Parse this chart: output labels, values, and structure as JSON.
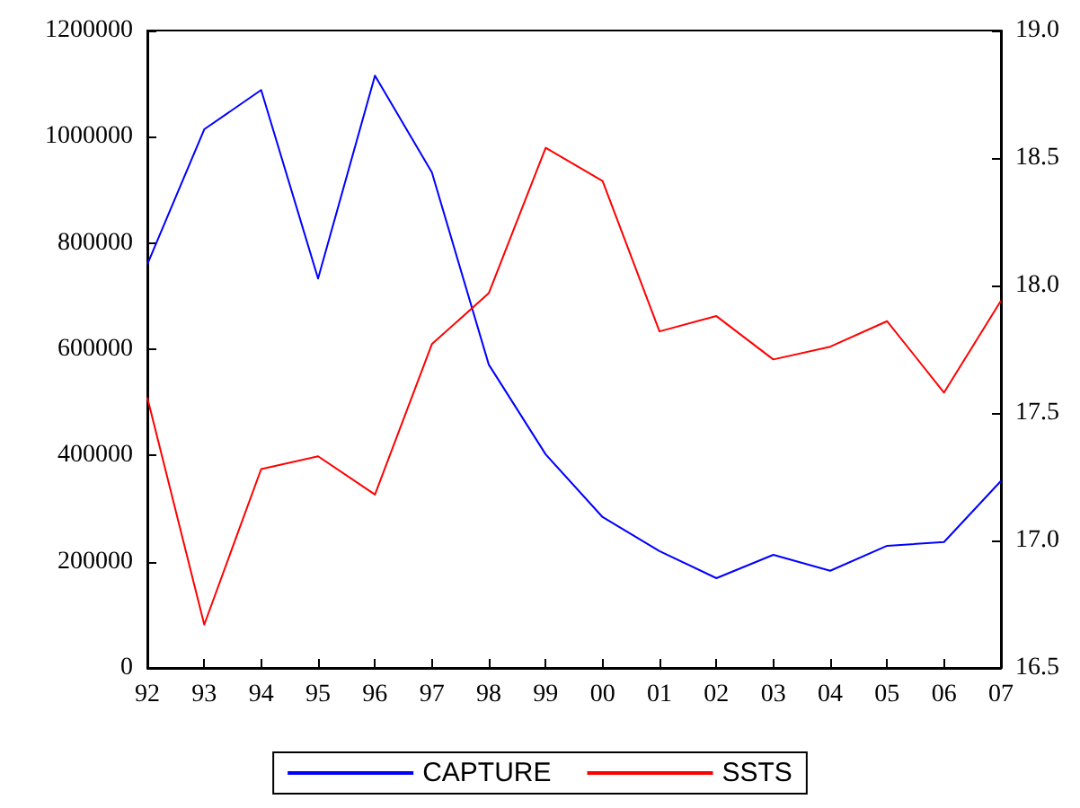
{
  "chart_data": {
    "type": "line",
    "categories": [
      "92",
      "93",
      "94",
      "95",
      "96",
      "97",
      "98",
      "99",
      "00",
      "01",
      "02",
      "03",
      "04",
      "05",
      "06",
      "07"
    ],
    "series": [
      {
        "name": "CAPTURE",
        "color": "#0000ff",
        "values": [
          760000,
          1014000,
          1088000,
          733000,
          1115000,
          933000,
          571000,
          402000,
          284000,
          220000,
          169000,
          213000,
          183000,
          230000,
          237000,
          352000
        ]
      },
      {
        "name": "SSTS",
        "color": "#ff0000",
        "axis": "y2",
        "values": [
          17.56,
          16.67,
          17.28,
          17.33,
          17.18,
          17.77,
          17.97,
          18.54,
          18.41,
          17.82,
          17.88,
          17.71,
          17.76,
          17.86,
          17.58,
          17.94
        ]
      }
    ],
    "ylim": [
      0,
      1200000
    ],
    "yticks": [
      0,
      200000,
      400000,
      600000,
      800000,
      1000000,
      1200000
    ],
    "y2lim": [
      16.5,
      19.0
    ],
    "y2ticks": [
      {
        "value": 16.5,
        "label": "16.5"
      },
      {
        "value": 17,
        "label": "17.0"
      },
      {
        "value": 17.5,
        "label": "17.5"
      },
      {
        "value": 18,
        "label": "18.0"
      },
      {
        "value": 18.5,
        "label": "18.5"
      },
      {
        "value": 19,
        "label": "19.0"
      }
    ],
    "legend": "bottom",
    "grid": false,
    "marker": "none",
    "line_style": "solid"
  }
}
